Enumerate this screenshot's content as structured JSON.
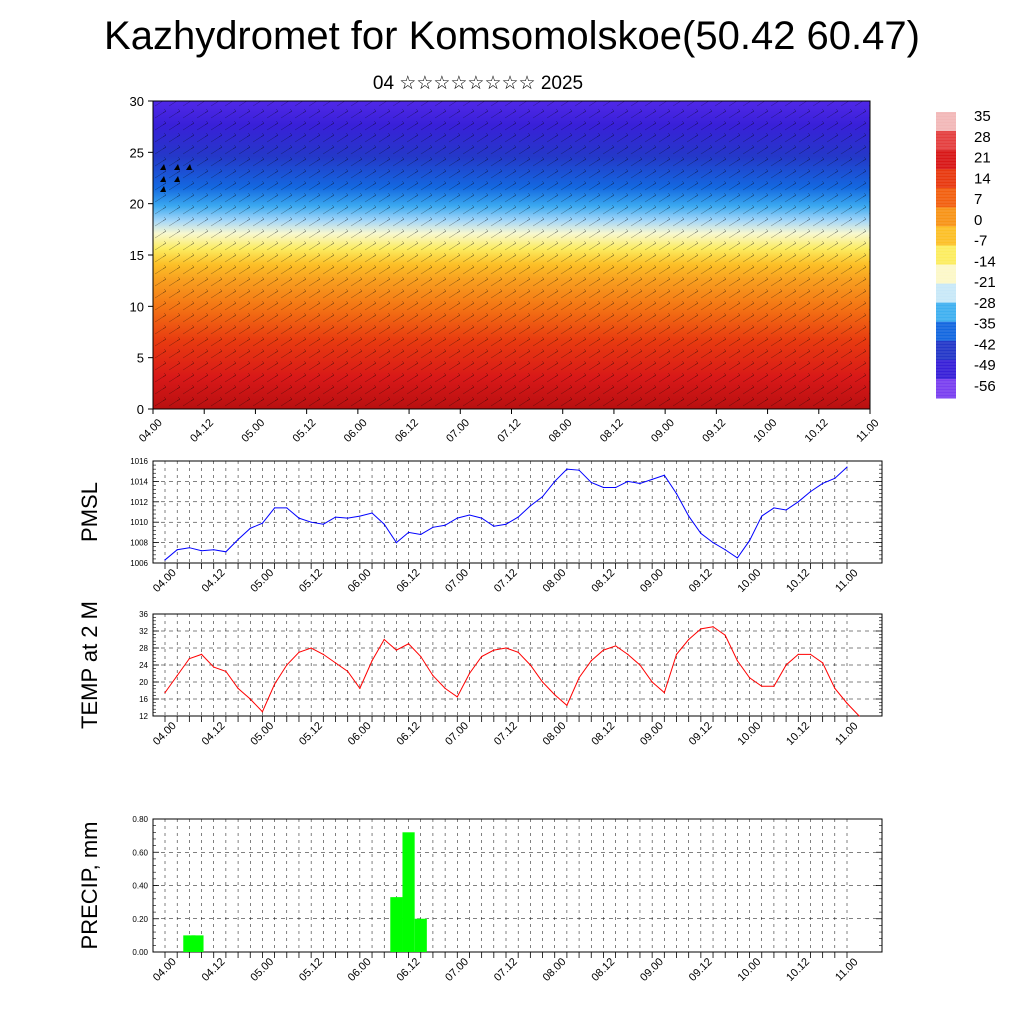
{
  "title": "Kazhydromet for Komsomolskoe(50.42 60.47)",
  "subtitle": "04 ☆☆☆☆☆☆☆☆ 2025",
  "time_labels": [
    "04.00",
    "04.12",
    "05.00",
    "05.12",
    "06.00",
    "06.12",
    "07.00",
    "07.12",
    "08.00",
    "08.12",
    "09.00",
    "09.12",
    "10.00",
    "10.12",
    "11.00"
  ],
  "colorbar": {
    "labels": [
      "35",
      "28",
      "21",
      "14",
      "7",
      "0",
      "-7",
      "-14",
      "-21",
      "-28",
      "-35",
      "-42",
      "-49",
      "-56"
    ],
    "colors": [
      "#f2b8b8",
      "#e44040",
      "#d81818",
      "#e83a10",
      "#f26010",
      "#f89418",
      "#fcc028",
      "#fcec60",
      "#fcf8c8",
      "#c8e8f8",
      "#40b0f0",
      "#1468e0",
      "#2438c8",
      "#3820d8",
      "#7a40f0"
    ]
  },
  "chart_data": [
    {
      "type": "heatmap",
      "title": "",
      "ylabel": "",
      "ylim": [
        0,
        30
      ],
      "yticks": [
        0,
        5,
        10,
        15,
        20,
        25,
        30
      ],
      "x": [
        "04.00",
        "04.12",
        "05.00",
        "05.12",
        "06.00",
        "06.12",
        "07.00",
        "07.12",
        "08.00",
        "08.12",
        "09.00",
        "09.12",
        "10.00",
        "10.12",
        "11.00"
      ],
      "temperature_profile": [
        {
          "level": 0,
          "value": 30
        },
        {
          "level": 5,
          "value": 24
        },
        {
          "level": 10,
          "value": 14
        },
        {
          "level": 15,
          "value": 0
        },
        {
          "level": 17.5,
          "value": -10
        },
        {
          "level": 20,
          "value": -30
        },
        {
          "level": 25,
          "value": -52
        },
        {
          "level": 30,
          "value": -60
        }
      ]
    },
    {
      "type": "line",
      "ylabel": "PMSL",
      "ylim": [
        1006,
        1016
      ],
      "yticks": [
        "1006",
        "1008",
        "1010",
        "1012",
        "1014",
        "1016"
      ],
      "color": "#0000ff",
      "values": [
        1006.3,
        1007.3,
        1007.5,
        1007.2,
        1007.3,
        1007.1,
        1008.3,
        1009.4,
        1009.9,
        1011.4,
        1011.4,
        1010.4,
        1010.0,
        1009.8,
        1010.5,
        1010.4,
        1010.6,
        1010.9,
        1009.8,
        1008.0,
        1009.0,
        1008.8,
        1009.5,
        1009.7,
        1010.4,
        1010.7,
        1010.4,
        1009.6,
        1009.8,
        1010.5,
        1011.6,
        1012.5,
        1014.0,
        1015.2,
        1015.1,
        1013.9,
        1013.4,
        1013.4,
        1014.0,
        1013.8,
        1014.2,
        1014.6,
        1012.8,
        1010.6,
        1008.9,
        1008.0,
        1007.3,
        1006.5,
        1008.2,
        1010.6,
        1011.4,
        1011.2,
        1012.0,
        1013.0,
        1013.8,
        1014.3,
        1015.4
      ]
    },
    {
      "type": "line",
      "ylabel": "TEMP at 2 M",
      "ylim": [
        12,
        36
      ],
      "yticks": [
        "12",
        "16",
        "20",
        "24",
        "28",
        "32",
        "36"
      ],
      "color": "#ff0000",
      "values": [
        17.5,
        21.5,
        25.5,
        26.5,
        23.5,
        22.5,
        18.5,
        16.0,
        13.0,
        19.5,
        24.0,
        27.0,
        28.0,
        26.5,
        24.5,
        22.5,
        18.5,
        25.0,
        30.0,
        27.5,
        29.0,
        26.0,
        21.5,
        18.5,
        16.5,
        22.0,
        26.0,
        27.5,
        28.0,
        27.0,
        24.0,
        20.0,
        17.0,
        14.5,
        21.0,
        25.0,
        27.5,
        28.5,
        26.5,
        24.0,
        20.0,
        17.5,
        26.5,
        30.0,
        32.5,
        33.0,
        31.0,
        25.0,
        21.0,
        19.0,
        19.0,
        24.0,
        26.5,
        26.5,
        24.5,
        18.5,
        15.0,
        12.0
      ]
    },
    {
      "type": "bar",
      "ylabel": "PRECIP, mm",
      "ylim": [
        0,
        0.8
      ],
      "yticks": [
        "0.00",
        "0.20",
        "0.40",
        "0.60",
        "0.80"
      ],
      "color": "#00ff00",
      "bars": [
        {
          "x": 4.25,
          "value": 0.1
        },
        {
          "x": 4.333,
          "value": 0.1
        },
        {
          "x": 6.375,
          "value": 0.33
        },
        {
          "x": 6.5,
          "value": 0.72
        },
        {
          "x": 6.625,
          "value": 0.2
        }
      ]
    }
  ]
}
